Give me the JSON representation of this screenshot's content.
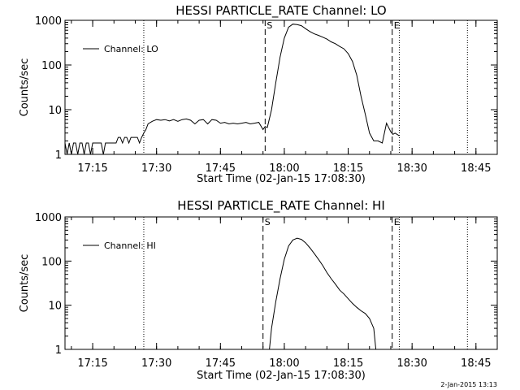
{
  "stamp": "2-Jan-2015 13:13",
  "chart_data": [
    {
      "type": "line",
      "title": "HESSI PARTICLE_RATE Channel: LO",
      "xlabel": "Start Time (02-Jan-15 17:08:30)",
      "ylabel": "Counts/sec",
      "yscale": "log",
      "ylim": [
        1,
        1000
      ],
      "xlim": [
        "17:08:30",
        "18:50:00"
      ],
      "yticks": [
        "1",
        "10",
        "100",
        "1000"
      ],
      "xticks": [
        "17:15",
        "17:30",
        "17:45",
        "18:00",
        "18:15",
        "18:30",
        "18:45"
      ],
      "legend": "top-left",
      "series": [
        {
          "name": "Channel: LO",
          "x": [
            "17:08:30",
            "17:09:00",
            "17:09:30",
            "17:10:00",
            "17:10:30",
            "17:11:00",
            "17:11:30",
            "17:12:00",
            "17:12:30",
            "17:13:00",
            "17:13:30",
            "17:14:00",
            "17:14:30",
            "17:15:00",
            "17:15:30",
            "17:16:00",
            "17:16:30",
            "17:17:00",
            "17:17:30",
            "17:18:00",
            "17:18:30",
            "17:19:00",
            "17:19:30",
            "17:20:00",
            "17:20:30",
            "17:21:00",
            "17:21:30",
            "17:22:00",
            "17:22:30",
            "17:23:00",
            "17:23:30",
            "17:24:00",
            "17:24:30",
            "17:25:00",
            "17:25:30",
            "17:26:00",
            "17:26:30",
            "17:27:00",
            "17:27:30",
            "17:28:00",
            "17:29:00",
            "17:30:00",
            "17:31:00",
            "17:32:00",
            "17:33:00",
            "17:34:00",
            "17:35:00",
            "17:36:00",
            "17:37:00",
            "17:38:00",
            "17:39:00",
            "17:40:00",
            "17:41:00",
            "17:42:00",
            "17:43:00",
            "17:44:00",
            "17:45:00",
            "17:46:00",
            "17:47:00",
            "17:48:00",
            "17:49:00",
            "17:50:00",
            "17:51:00",
            "17:52:00",
            "17:53:00",
            "17:54:00",
            "17:55:00",
            "17:55:30",
            "17:56:00",
            "17:57:00",
            "17:58:00",
            "17:59:00",
            "18:00:00",
            "18:01:00",
            "18:02:00",
            "18:03:00",
            "18:04:00",
            "18:05:00",
            "18:06:00",
            "18:07:00",
            "18:08:00",
            "18:09:00",
            "18:10:00",
            "18:11:00",
            "18:12:00",
            "18:13:00",
            "18:14:00",
            "18:15:00",
            "18:16:00",
            "18:17:00",
            "18:18:00",
            "18:19:00",
            "18:20:00",
            "18:21:00",
            "18:22:00",
            "18:23:00",
            "18:24:00",
            "18:24:30",
            "18:25:00",
            "18:25:30",
            "18:26:00",
            "18:26:30",
            "18:27:00"
          ],
          "y": [
            1.8,
            1,
            1.8,
            1,
            1.8,
            1.8,
            1,
            1.8,
            1.8,
            1,
            1.8,
            1.8,
            1,
            1.8,
            1.8,
            1.8,
            1.8,
            1.8,
            1,
            1.8,
            1.8,
            1.8,
            1.8,
            1.8,
            1.8,
            2.4,
            2.4,
            1.8,
            2.4,
            2.4,
            1.8,
            2.4,
            2.4,
            2.4,
            2.4,
            1.8,
            2.4,
            3,
            3.6,
            4.8,
            5.5,
            6,
            5.8,
            6,
            5.6,
            6,
            5.5,
            6,
            6.2,
            5.8,
            4.8,
            5.8,
            6,
            4.8,
            6,
            5.8,
            5,
            5.2,
            4.8,
            5,
            4.8,
            5,
            5.2,
            4.8,
            5,
            5.2,
            3.6,
            4.2,
            4,
            10,
            40,
            150,
            400,
            700,
            820,
            800,
            760,
            650,
            560,
            500,
            460,
            420,
            380,
            330,
            300,
            260,
            230,
            180,
            120,
            60,
            20,
            8,
            3,
            2,
            2,
            1.8,
            5,
            4,
            3.2,
            2.8,
            3,
            2.8,
            2.6
          ]
        }
      ],
      "annotations": [
        {
          "label": "S",
          "time": "17:55:30"
        },
        {
          "label": "E",
          "time": "18:25:20"
        }
      ],
      "markers": [
        "17:27:00",
        "18:27:00",
        "18:43:00"
      ]
    },
    {
      "type": "line",
      "title": "HESSI PARTICLE_RATE Channel: HI",
      "xlabel": "Start Time (02-Jan-15 17:08:30)",
      "ylabel": "Counts/sec",
      "yscale": "log",
      "ylim": [
        1,
        1000
      ],
      "xlim": [
        "17:08:30",
        "18:50:00"
      ],
      "yticks": [
        "1",
        "10",
        "100",
        "1000"
      ],
      "xticks": [
        "17:15",
        "17:30",
        "17:45",
        "18:00",
        "18:15",
        "18:30",
        "18:45"
      ],
      "legend": "top-left",
      "series": [
        {
          "name": "Channel: HI",
          "x": [
            "17:56:30",
            "17:57:00",
            "17:58:00",
            "17:59:00",
            "18:00:00",
            "18:01:00",
            "18:02:00",
            "18:03:00",
            "18:04:00",
            "18:05:00",
            "18:06:00",
            "18:07:00",
            "18:08:00",
            "18:09:00",
            "18:10:00",
            "18:11:00",
            "18:12:00",
            "18:13:00",
            "18:14:00",
            "18:15:00",
            "18:16:00",
            "18:17:00",
            "18:18:00",
            "18:19:00",
            "18:20:00",
            "18:21:00",
            "18:21:30"
          ],
          "y": [
            1,
            3,
            12,
            40,
            110,
            220,
            300,
            330,
            310,
            260,
            200,
            150,
            110,
            80,
            55,
            40,
            30,
            22,
            18,
            14,
            11,
            9,
            7.5,
            6.5,
            5,
            3,
            1
          ]
        }
      ],
      "annotations": [
        {
          "label": "S",
          "time": "17:55:00"
        },
        {
          "label": "E",
          "time": "18:25:20"
        }
      ],
      "markers": [
        "17:27:00",
        "18:27:00",
        "18:43:00"
      ]
    }
  ]
}
